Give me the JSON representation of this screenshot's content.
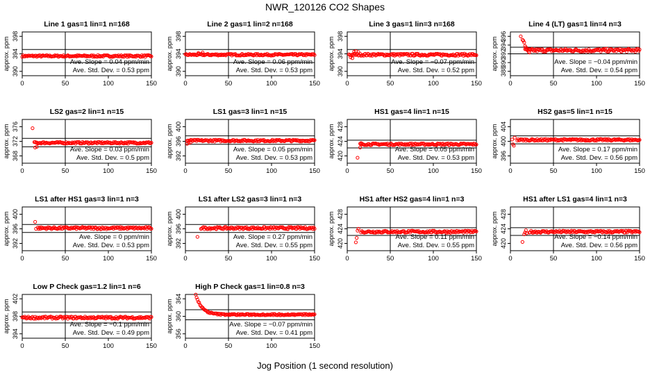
{
  "figure": {
    "title": "NWR_120126  CO2 Shapes",
    "xlabel": "Jog Position (1 second resolution)"
  },
  "colors": {
    "points": "#ff0000",
    "axes": "#000000",
    "background": "#ffffff"
  },
  "chart_data": [
    {
      "type": "scatter",
      "title": "Line 1 gas=1 lin=1 n=168",
      "ylabel": "approx. ppm",
      "xlim": [
        0,
        150
      ],
      "ylim": [
        389,
        399
      ],
      "yticks": [
        390,
        394,
        398
      ],
      "xticks": [
        0,
        50,
        100,
        150
      ],
      "hlines": [
        395,
        392
      ],
      "vline": 50,
      "xrange": [
        0,
        150
      ],
      "level": 393.5,
      "noise": 0.2,
      "slope_text": "Ave. Slope = 0.04  ppm/min",
      "std_text": "Ave. Std. Dev. = 0.53  ppm",
      "outliers": []
    },
    {
      "type": "scatter",
      "title": "Line 2 gas=1 lin=2 n=168",
      "ylabel": "approx. ppm",
      "xlim": [
        0,
        150
      ],
      "ylim": [
        389,
        399
      ],
      "yticks": [
        390,
        394,
        398
      ],
      "xticks": [
        0,
        50,
        100,
        150
      ],
      "hlines": [
        395,
        392
      ],
      "vline": 50,
      "xrange": [
        0,
        150
      ],
      "level": 393.8,
      "noise": 0.2,
      "slope_text": "Ave. Slope = 0.06  ppm/min",
      "std_text": "Ave. Std. Dev. = 0.53  ppm",
      "outliers": [
        [
          15,
          394.2
        ],
        [
          20,
          394.3
        ]
      ]
    },
    {
      "type": "scatter",
      "title": "Line 3 gas=1 lin=3 n=168",
      "ylabel": "approx. ppm",
      "xlim": [
        0,
        150
      ],
      "ylim": [
        389,
        399
      ],
      "yticks": [
        390,
        394,
        398
      ],
      "xticks": [
        0,
        50,
        100,
        150
      ],
      "hlines": [
        395,
        392
      ],
      "vline": 50,
      "xrange": [
        2,
        150
      ],
      "level": 393.8,
      "noise": 0.25,
      "slope_text": "Ave. Slope = −0.07  ppm/min",
      "std_text": "Ave. Std. Dev. = 0.52  ppm",
      "outliers": [
        [
          4,
          393.2
        ],
        [
          6,
          393.0
        ],
        [
          8,
          394.5
        ],
        [
          10,
          394.6
        ],
        [
          13,
          394.4
        ]
      ]
    },
    {
      "type": "scatter",
      "title": "Line 4 (LT) gas=1 lin=4 n=3",
      "ylabel": "approx. ppm",
      "xlim": [
        0,
        150
      ],
      "ylim": [
        387,
        397
      ],
      "yticks": [
        388,
        390,
        392,
        394,
        396
      ],
      "xticks": [
        0,
        50,
        100,
        150
      ],
      "hlines": [
        393.5,
        392
      ],
      "vline": 50,
      "xrange": [
        17,
        150
      ],
      "level": 392.8,
      "noise": 0.35,
      "slope_text": "Ave. Slope = −0.04  ppm/min",
      "std_text": "Ave. Std. Dev. = 0.54  ppm",
      "outliers": [
        [
          12,
          396.0
        ],
        [
          14,
          395.2
        ],
        [
          15,
          395.0
        ],
        [
          16,
          394.6
        ],
        [
          17,
          393.8
        ],
        [
          18,
          393.5
        ],
        [
          19,
          393.1
        ],
        [
          21,
          392.5
        ],
        [
          22,
          392.3
        ]
      ]
    },
    {
      "type": "scatter",
      "title": "LS2 gas=2 lin=1 n=15",
      "ylabel": "approx. ppm",
      "xlim": [
        0,
        150
      ],
      "ylim": [
        366,
        378
      ],
      "yticks": [
        368,
        372,
        376
      ],
      "xticks": [
        0,
        50,
        100,
        150
      ],
      "hlines": [
        372.8,
        370.5
      ],
      "vline": 50,
      "xrange": [
        15,
        150
      ],
      "level": 371.6,
      "noise": 0.25,
      "slope_text": "Ave. Slope = 0.03  ppm/min",
      "std_text": "Ave. Std. Dev. = 0.5  ppm",
      "outliers": [
        [
          12,
          375.6
        ],
        [
          14,
          371.8
        ],
        [
          15,
          370.3
        ],
        [
          17,
          370.5
        ]
      ]
    },
    {
      "type": "scatter",
      "title": "LS1 gas=3 lin=1 n=15",
      "ylabel": "approx. ppm",
      "xlim": [
        0,
        150
      ],
      "ylim": [
        390,
        402
      ],
      "yticks": [
        392,
        396,
        400
      ],
      "xticks": [
        0,
        50,
        100,
        150
      ],
      "hlines": [
        397.5,
        395.2
      ],
      "vline": 50,
      "xrange": [
        2,
        150
      ],
      "level": 396.2,
      "noise": 0.25,
      "slope_text": "Ave. Slope = 0.05  ppm/min",
      "std_text": "Ave. Std. Dev. = 0.53  ppm",
      "outliers": [
        [
          2,
          395.3
        ],
        [
          4,
          395.6
        ],
        [
          6,
          395.7
        ]
      ]
    },
    {
      "type": "scatter",
      "title": "HS1 gas=4 lin=1 n=15",
      "ylabel": "approx. ppm",
      "xlim": [
        0,
        150
      ],
      "ylim": [
        418,
        430
      ],
      "yticks": [
        420,
        424,
        428
      ],
      "xticks": [
        0,
        50,
        100,
        150
      ],
      "hlines": [
        424.3,
        422.2
      ],
      "vline": 50,
      "xrange": [
        15,
        150
      ],
      "level": 423.2,
      "noise": 0.25,
      "slope_text": "Ave. Slope = 0.05  ppm/min",
      "std_text": "Ave. Std. Dev. = 0.53  ppm",
      "outliers": [
        [
          12,
          419.5
        ],
        [
          15,
          422.3
        ],
        [
          16,
          423.5
        ]
      ]
    },
    {
      "type": "scatter",
      "title": "HS2 gas=5 lin=1 n=15",
      "ylabel": "approx. ppm",
      "xlim": [
        0,
        150
      ],
      "ylim": [
        394,
        406
      ],
      "yticks": [
        396,
        400,
        404
      ],
      "xticks": [
        0,
        50,
        100,
        150
      ],
      "hlines": [
        401.5,
        399.3
      ],
      "vline": 50,
      "xrange": [
        8,
        150
      ],
      "level": 400.4,
      "noise": 0.25,
      "slope_text": "Ave. Slope = 0.17  ppm/min",
      "std_text": "Ave. Std. Dev. = 0.56  ppm",
      "outliers": [
        [
          2,
          400.5
        ],
        [
          3,
          399.2
        ],
        [
          4,
          398.8
        ],
        [
          5,
          401.0
        ]
      ]
    },
    {
      "type": "scatter",
      "title": "LS1 after HS1 gas=3 lin=1 n=3",
      "ylabel": "approx. ppm",
      "xlim": [
        0,
        150
      ],
      "ylim": [
        390,
        402
      ],
      "yticks": [
        392,
        396,
        400
      ],
      "xticks": [
        0,
        50,
        100,
        150
      ],
      "hlines": [
        397.2,
        395.0
      ],
      "vline": 50,
      "xrange": [
        18,
        150
      ],
      "level": 396.2,
      "noise": 0.3,
      "slope_text": "Ave. Slope = 0  ppm/min",
      "std_text": "Ave. Std. Dev. = 0.53  ppm",
      "outliers": [
        [
          15,
          397.9
        ],
        [
          16,
          396.0
        ]
      ]
    },
    {
      "type": "scatter",
      "title": "LS1 after LS2 gas=3 lin=1 n=3",
      "ylabel": "approx. ppm",
      "xlim": [
        0,
        150
      ],
      "ylim": [
        390,
        402
      ],
      "yticks": [
        392,
        396,
        400
      ],
      "xticks": [
        0,
        50,
        100,
        150
      ],
      "hlines": [
        397.2,
        395.0
      ],
      "vline": 50,
      "xrange": [
        18,
        150
      ],
      "level": 396.2,
      "noise": 0.3,
      "slope_text": "Ave. Slope = 0.27  ppm/min",
      "std_text": "Ave. Std. Dev. = 0.55  ppm",
      "outliers": [
        [
          14,
          393.8
        ]
      ]
    },
    {
      "type": "scatter",
      "title": "HS1 after HS2 gas=4 lin=1 n=3",
      "ylabel": "approx. ppm",
      "xlim": [
        0,
        150
      ],
      "ylim": [
        418,
        430
      ],
      "yticks": [
        420,
        424,
        428
      ],
      "xticks": [
        0,
        50,
        100,
        150
      ],
      "hlines": [
        424.3,
        422.2
      ],
      "vline": 50,
      "xrange": [
        16,
        150
      ],
      "level": 423.2,
      "noise": 0.3,
      "slope_text": "Ave. Slope = 0.11  ppm/min",
      "std_text": "Ave. Std. Dev. = 0.55  ppm",
      "outliers": [
        [
          10,
          420.3
        ],
        [
          11,
          421.5
        ],
        [
          12,
          423.5
        ],
        [
          13,
          424.0
        ]
      ]
    },
    {
      "type": "scatter",
      "title": "HS1 after LS1 gas=4 lin=1 n=3",
      "ylabel": "approx. ppm",
      "xlim": [
        0,
        150
      ],
      "ylim": [
        418,
        430
      ],
      "yticks": [
        420,
        424,
        428
      ],
      "xticks": [
        0,
        50,
        100,
        150
      ],
      "hlines": [
        424.3,
        422.2
      ],
      "vline": 50,
      "xrange": [
        22,
        150
      ],
      "level": 423.2,
      "noise": 0.3,
      "slope_text": "Ave. Slope = −0.14  ppm/min",
      "std_text": "Ave. Std. Dev. = 0.56  ppm",
      "outliers": [
        [
          14,
          420.4
        ],
        [
          16,
          422.5
        ],
        [
          17,
          423.0
        ],
        [
          18,
          423.6
        ],
        [
          19,
          422.8
        ]
      ]
    },
    {
      "type": "scatter",
      "title": "Low P Check gas=1.2 lin=1 n=6",
      "ylabel": "approx. ppm",
      "xlim": [
        0,
        150
      ],
      "ylim": [
        393,
        403
      ],
      "yticks": [
        394,
        398,
        402
      ],
      "xticks": [
        0,
        50,
        100,
        150
      ],
      "hlines": [
        399.0,
        396.5
      ],
      "vline": 50,
      "xrange": [
        0,
        150
      ],
      "level": 397.7,
      "noise": 0.25,
      "slope_text": "Ave. Slope = −0.1  ppm/min",
      "std_text": "Ave. Std. Dev. = 0.49  ppm",
      "outliers": []
    },
    {
      "type": "scatter",
      "title": "High P Check gas=1 lin=0.8 n=3",
      "ylabel": "approx. ppm",
      "xlim": [
        0,
        150
      ],
      "ylim": [
        355,
        365
      ],
      "yticks": [
        356,
        360,
        364
      ],
      "xticks": [
        0,
        50,
        100,
        150
      ],
      "hlines": [
        361.5,
        359.2
      ],
      "vline": 50,
      "xrange": [
        12,
        150
      ],
      "level": 360.4,
      "noise": 0.25,
      "decay": {
        "start": 365.0,
        "tau": 7
      },
      "slope_text": "Ave. Slope = −0.07  ppm/min",
      "std_text": "Ave. Std. Dev. = 0.41  ppm",
      "outliers": []
    }
  ]
}
